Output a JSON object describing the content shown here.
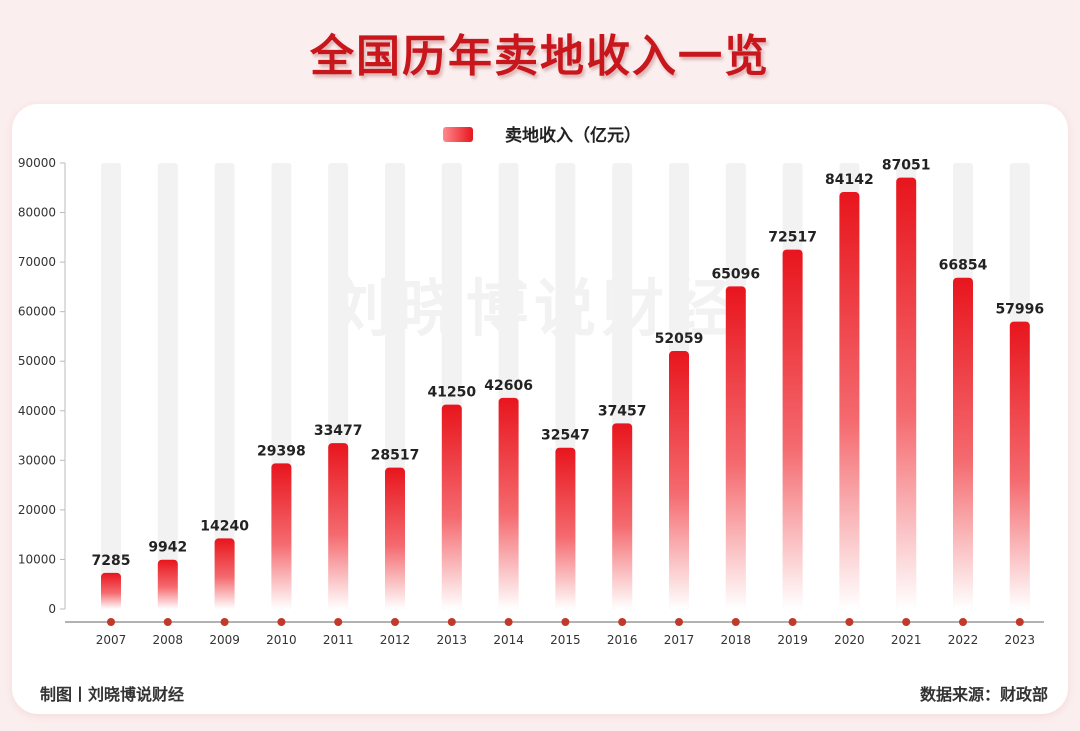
{
  "header": {
    "title": "全国历年卖地收入一览"
  },
  "watermark": "刘晓博说财经",
  "footer": {
    "left": "制图丨刘晓博说财经",
    "right": "数据来源：财政部"
  },
  "colors": {
    "bar_top": "#e8151d",
    "bar_bottom": "#ffffff",
    "track": "#f2f2f2",
    "dot": "#c0392b",
    "title": "#c8161d"
  },
  "chart_data": {
    "type": "bar",
    "title": "",
    "legend": {
      "position": "top-center",
      "entries": [
        "卖地收入（亿元）"
      ]
    },
    "categories": [
      "2007",
      "2008",
      "2009",
      "2010",
      "2011",
      "2012",
      "2013",
      "2014",
      "2015",
      "2016",
      "2017",
      "2018",
      "2019",
      "2020",
      "2021",
      "2022",
      "2023"
    ],
    "series": [
      {
        "name": "卖地收入（亿元）",
        "values": [
          7285,
          9942,
          14240,
          29398,
          33477,
          28517,
          41250,
          42606,
          32547,
          37457,
          52059,
          65096,
          72517,
          84142,
          87051,
          66854,
          57996
        ]
      }
    ],
    "data_labels": [
      "7285",
      "9942",
      "14240",
      "29398",
      "33477",
      "28517",
      "41250",
      "42606",
      "32547",
      "37457",
      "52059",
      "65096",
      "72517",
      "84142",
      "87051",
      "66854",
      "57996"
    ],
    "yticks": [
      "0",
      "10000",
      "20000",
      "30000",
      "40000",
      "50000",
      "60000",
      "70000",
      "80000",
      "90000"
    ],
    "ylim": [
      0,
      90000
    ],
    "grid": false
  }
}
